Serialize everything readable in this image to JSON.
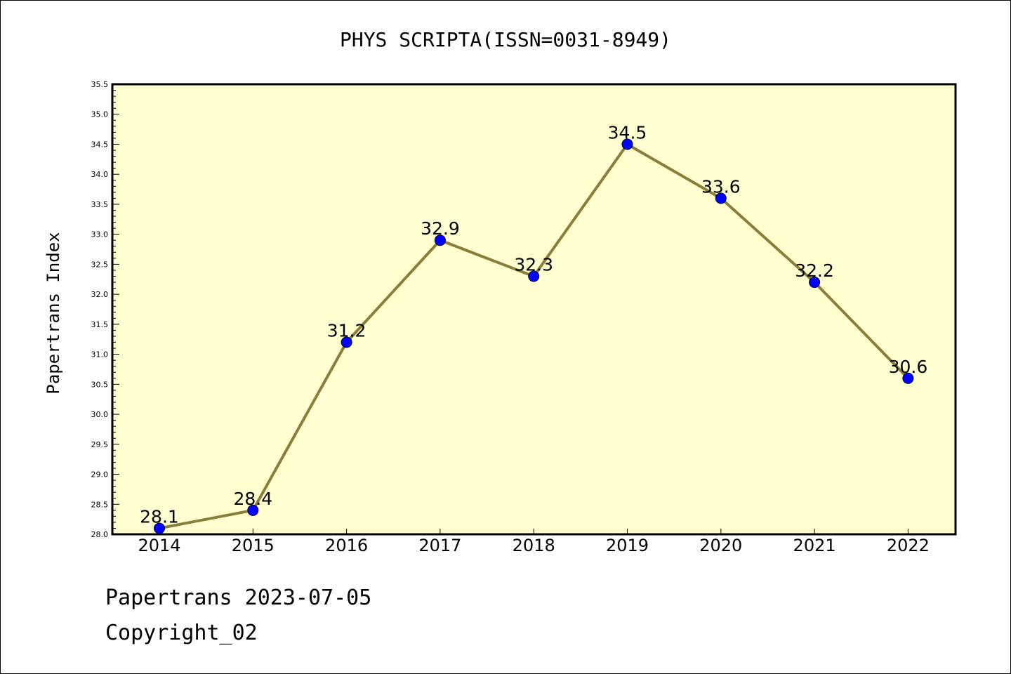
{
  "footer": {
    "date_line": "Papertrans 2023-07-05",
    "copyright": "Copyright_02"
  },
  "colors": {
    "plot_background": "#ffffd0",
    "line": "#8b7d3a",
    "marker": "#0000ff"
  },
  "chart_data": {
    "type": "line",
    "title": "PHYS SCRIPTA(ISSN=0031-8949)",
    "ylabel": "Papertrans Index",
    "xlabel": "",
    "categories": [
      "2014",
      "2015",
      "2016",
      "2017",
      "2018",
      "2019",
      "2020",
      "2021",
      "2022"
    ],
    "series": [
      {
        "values": [
          28.1,
          28.4,
          31.2,
          32.9,
          32.3,
          34.5,
          33.6,
          32.2,
          30.6
        ],
        "data_labels": [
          "28.1",
          "28.4",
          "31.2",
          "32.9",
          "32.3",
          "34.5",
          "33.6",
          "32.2",
          "30.6"
        ]
      }
    ],
    "ylim": [
      28.0,
      35.5
    ],
    "yticks": [
      "28.0",
      "28.5",
      "29.0",
      "29.5",
      "30.0",
      "30.5",
      "31.0",
      "31.5",
      "32.0",
      "32.5",
      "33.0",
      "33.5",
      "34.0",
      "34.5",
      "35.0",
      "35.5"
    ],
    "grid": false,
    "legend": "none"
  }
}
